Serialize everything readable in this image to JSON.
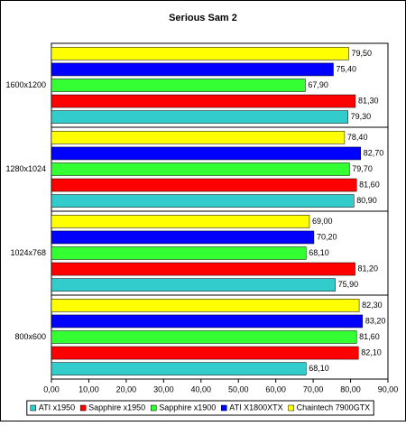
{
  "chart_data": {
    "type": "hbar",
    "title": "Serious Sam 2",
    "categories": [
      "1600x1200",
      "1280x1024",
      "1024x768",
      "800x600"
    ],
    "series": [
      {
        "name": "ATI x1950",
        "color": "#33cccc",
        "values": [
          79.3,
          80.9,
          75.9,
          68.1
        ],
        "value_labels": [
          "79,30",
          "80,90",
          "75,90",
          "68,10"
        ]
      },
      {
        "name": "Sapphire x1950",
        "color": "#ff0000",
        "values": [
          81.3,
          81.6,
          81.2,
          82.1
        ],
        "value_labels": [
          "81,30",
          "81,60",
          "81,20",
          "82,10"
        ]
      },
      {
        "name": "Sapphire x1900",
        "color": "#33ff33",
        "values": [
          67.9,
          79.7,
          68.1,
          81.6
        ],
        "value_labels": [
          "67,90",
          "79,70",
          "68,10",
          "81,60"
        ]
      },
      {
        "name": "ATI X1800XTX",
        "color": "#0000ff",
        "values": [
          75.4,
          82.7,
          70.2,
          83.2
        ],
        "value_labels": [
          "75,40",
          "82,70",
          "70,20",
          "83,20"
        ]
      },
      {
        "name": "Chaintech 7900GTX",
        "color": "#ffff00",
        "values": [
          79.5,
          78.4,
          69.0,
          82.3
        ],
        "value_labels": [
          "79,50",
          "78,40",
          "69,00",
          "82,30"
        ]
      }
    ],
    "xlim": [
      0,
      90
    ],
    "xticks": [
      {
        "value": 0,
        "label": "0,00"
      },
      {
        "value": 10,
        "label": "10,00"
      },
      {
        "value": 20,
        "label": "20,00"
      },
      {
        "value": 30,
        "label": "30,00"
      },
      {
        "value": 40,
        "label": "40,00"
      },
      {
        "value": 50,
        "label": "50,00"
      },
      {
        "value": 60,
        "label": "60,00"
      },
      {
        "value": 70,
        "label": "70,00"
      },
      {
        "value": 80,
        "label": "80,00"
      },
      {
        "value": 90,
        "label": "90,00"
      }
    ],
    "grid": false,
    "legend": "bottom"
  }
}
